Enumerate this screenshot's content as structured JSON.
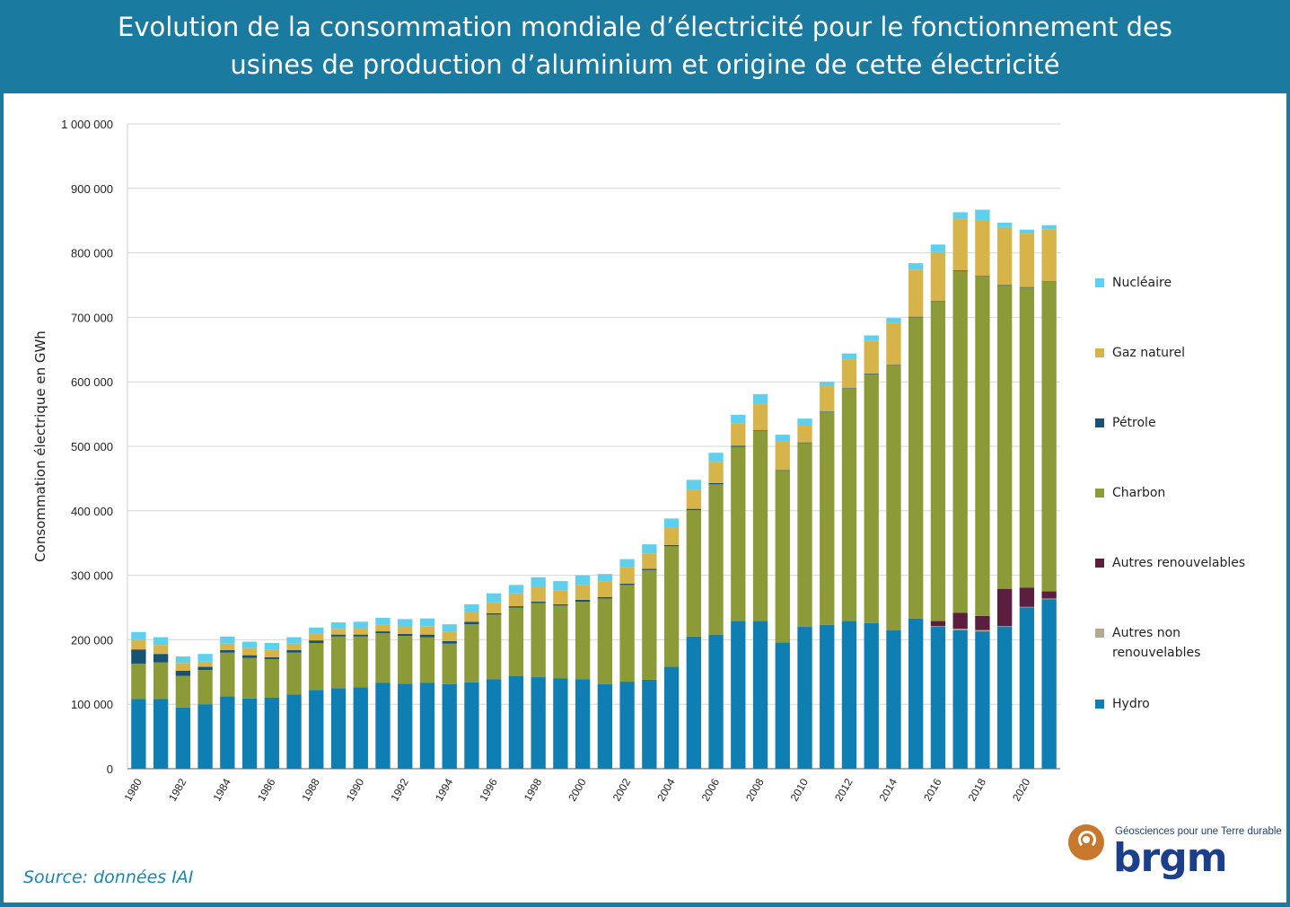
{
  "title": {
    "line1": "Evolution de la consommation mondiale d’électricité pour le fonctionnement des",
    "line2": "usines de production d’aluminium et origine de cette électricité"
  },
  "source": "Source: données IAI",
  "logo": {
    "tagline": "Géosciences pour une Terre durable",
    "wordmark": "brgm"
  },
  "colors": {
    "frame": "#1a7aa0",
    "Hydro": "#0f7eb3",
    "Autres non renouvelables": "#b7a690",
    "Autres renouvelables": "#5b1e3e",
    "Charbon": "#8c9a37",
    "Pétrole": "#1a5272",
    "Gaz naturel": "#d6b44a",
    "Nucléaire": "#5fcfee"
  },
  "legend": [
    {
      "label": "Nucléaire",
      "series": "Nucléaire"
    },
    {
      "label": "Gaz naturel",
      "series": "Gaz naturel"
    },
    {
      "label": "Pétrole",
      "series": "Pétrole"
    },
    {
      "label": "Charbon",
      "series": "Charbon"
    },
    {
      "label": "Autres renouvelables",
      "series": "Autres renouvelables"
    },
    {
      "label": "Autres non renouvelables",
      "series": "Autres non renouvelables"
    },
    {
      "label": "Hydro",
      "series": "Hydro"
    }
  ],
  "chart_data": {
    "type": "bar",
    "stacked": true,
    "title": "",
    "xlabel": "",
    "ylabel": "Consommation électrique en GWh",
    "ylim": [
      0,
      1000000
    ],
    "yticks": [
      0,
      100000,
      200000,
      300000,
      400000,
      500000,
      600000,
      700000,
      800000,
      900000,
      1000000
    ],
    "ytick_labels": [
      "0",
      "100 000",
      "200 000",
      "300 000",
      "400 000",
      "500 000",
      "600 000",
      "700 000",
      "800 000",
      "900 000",
      "1 000 000"
    ],
    "grid": "horizontal",
    "legend_position": "right",
    "categories": [
      "1980",
      "1981",
      "1982",
      "1983",
      "1984",
      "1985",
      "1986",
      "1987",
      "1988",
      "1989",
      "1990",
      "1991",
      "1992",
      "1993",
      "1994",
      "1995",
      "1996",
      "1997",
      "1998",
      "1999",
      "2000",
      "2001",
      "2002",
      "2003",
      "2004",
      "2005",
      "2006",
      "2007",
      "2008",
      "2009",
      "2010",
      "2011",
      "2012",
      "2013",
      "2014",
      "2015",
      "2016",
      "2017",
      "2018",
      "2019",
      "2020",
      "2021"
    ],
    "xtick_labels": [
      "1980",
      "1982",
      "1984",
      "1986",
      "1988",
      "1990",
      "1992",
      "1994",
      "1996",
      "1998",
      "2000",
      "2002",
      "2004",
      "2006",
      "2008",
      "2010",
      "2012",
      "2014",
      "2016",
      "2018",
      "2020"
    ],
    "series": [
      {
        "name": "Hydro",
        "values": [
          108000,
          108000,
          95000,
          100000,
          112000,
          109000,
          110000,
          115000,
          122000,
          125000,
          126000,
          133000,
          132000,
          133000,
          131000,
          134000,
          139000,
          144000,
          142000,
          140000,
          139000,
          131000,
          135000,
          138000,
          158000,
          205000,
          208000,
          229000,
          229000,
          196000,
          220000,
          223000,
          229000,
          226000,
          215000,
          233000,
          220000,
          215000,
          213000,
          220000,
          250000,
          263000
        ]
      },
      {
        "name": "Autres non renouvelables",
        "values": [
          0,
          0,
          0,
          0,
          0,
          0,
          0,
          0,
          0,
          0,
          0,
          0,
          0,
          0,
          0,
          0,
          0,
          0,
          0,
          0,
          0,
          0,
          0,
          0,
          0,
          0,
          0,
          0,
          0,
          0,
          0,
          0,
          0,
          0,
          0,
          0,
          1000,
          2000,
          2000,
          1000,
          1000,
          1000
        ]
      },
      {
        "name": "Autres renouvelables",
        "values": [
          0,
          0,
          0,
          0,
          0,
          0,
          0,
          0,
          0,
          0,
          0,
          0,
          0,
          0,
          0,
          0,
          0,
          0,
          0,
          0,
          0,
          0,
          0,
          0,
          0,
          0,
          0,
          0,
          0,
          0,
          0,
          0,
          0,
          0,
          0,
          0,
          8000,
          25000,
          22000,
          58000,
          30000,
          11000
        ]
      },
      {
        "name": "Charbon",
        "values": [
          55000,
          57000,
          49000,
          53000,
          68000,
          63000,
          60000,
          65000,
          73000,
          80000,
          79000,
          77000,
          74000,
          71000,
          63000,
          90000,
          100000,
          106000,
          115000,
          113000,
          120000,
          133000,
          150000,
          170000,
          187000,
          196000,
          233000,
          270000,
          295000,
          266000,
          285000,
          330000,
          360000,
          386000,
          410000,
          467000,
          495000,
          530000,
          526000,
          470000,
          465000,
          480000
        ]
      },
      {
        "name": "Pétrole",
        "values": [
          22000,
          13000,
          8000,
          5000,
          4000,
          4000,
          3000,
          4000,
          4000,
          3000,
          3000,
          3000,
          3000,
          4000,
          4000,
          4000,
          2000,
          2000,
          2000,
          2000,
          3000,
          2000,
          2000,
          2000,
          2000,
          2000,
          2000,
          2000,
          1000,
          1000,
          1000,
          1000,
          1000,
          1000,
          1000,
          1000,
          1000,
          1000,
          1000,
          1000,
          1000,
          1000
        ]
      },
      {
        "name": "Gaz naturel",
        "values": [
          15000,
          14000,
          12000,
          8000,
          10000,
          11000,
          12000,
          10000,
          10000,
          9000,
          10000,
          10000,
          11000,
          13000,
          14000,
          15000,
          17000,
          20000,
          23000,
          21000,
          23000,
          24000,
          26000,
          24000,
          27000,
          30000,
          33000,
          35000,
          41000,
          44000,
          26000,
          40000,
          45000,
          51000,
          66000,
          73000,
          76000,
          80000,
          87000,
          90000,
          83000,
          80000
        ]
      },
      {
        "name": "Nucléaire",
        "values": [
          12000,
          12000,
          10000,
          12000,
          11000,
          10000,
          10000,
          10000,
          10000,
          10000,
          10000,
          11000,
          12000,
          12000,
          12000,
          12000,
          14000,
          13000,
          15000,
          15000,
          15000,
          12000,
          12000,
          14000,
          14000,
          15000,
          14000,
          13000,
          15000,
          11000,
          11000,
          6000,
          9000,
          8000,
          7000,
          10000,
          12000,
          10000,
          16000,
          7000,
          6000,
          7000
        ]
      }
    ]
  }
}
